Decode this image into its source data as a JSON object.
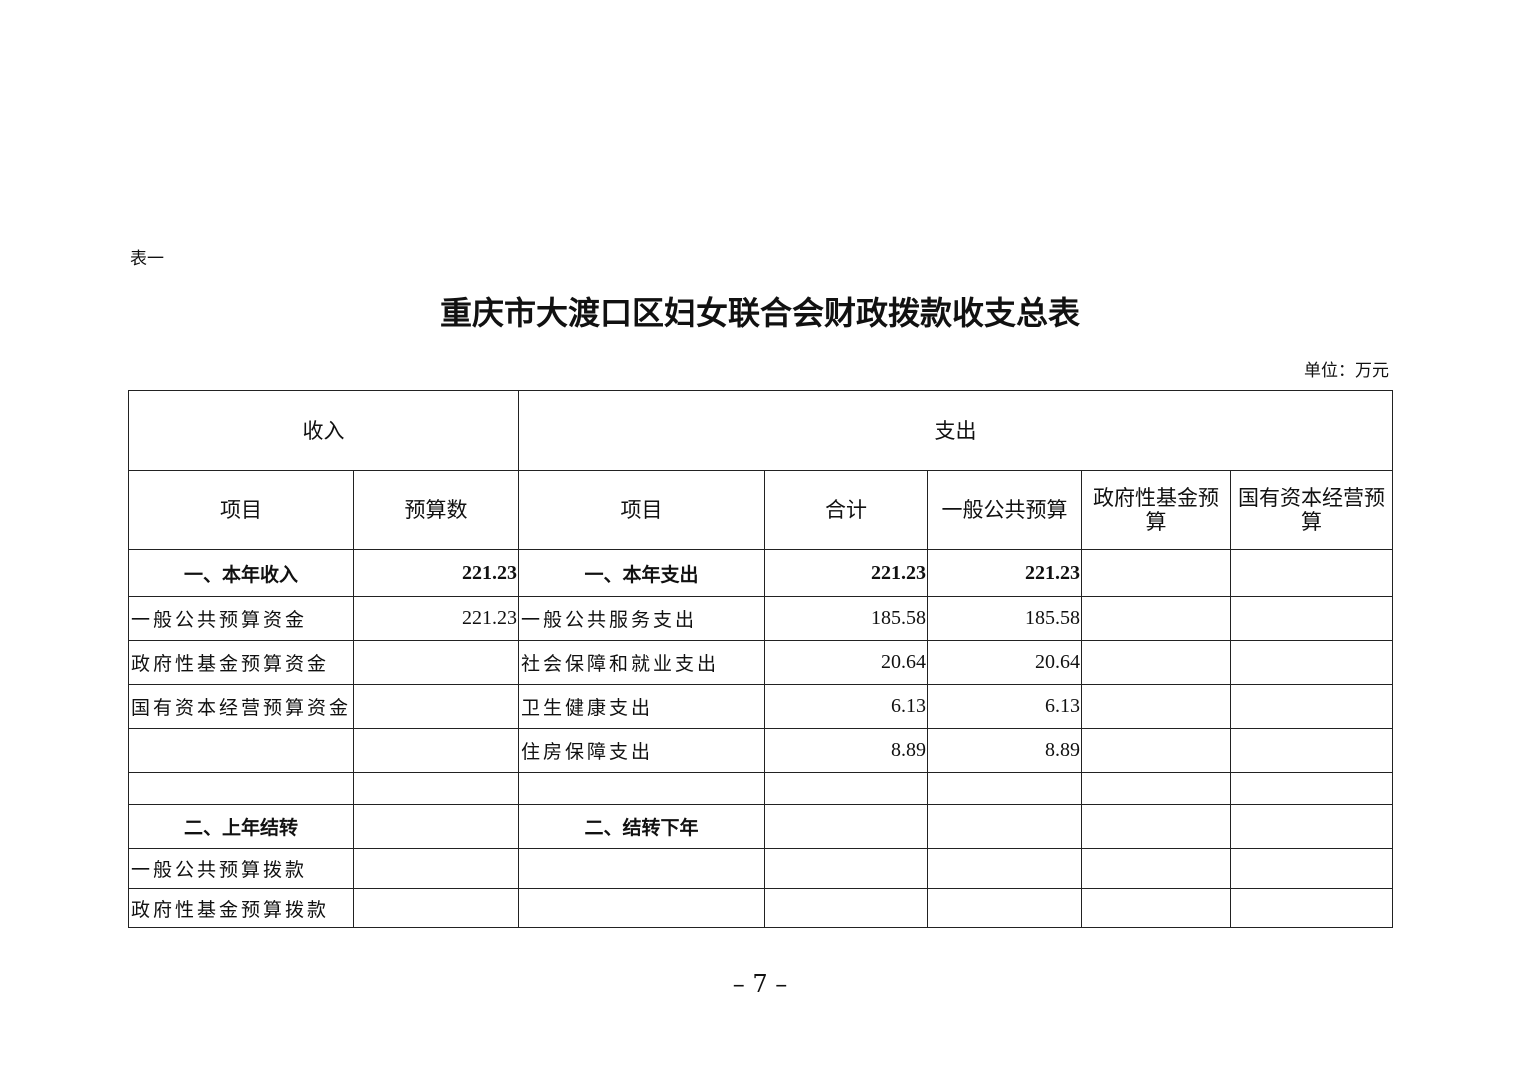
{
  "table_label": "表一",
  "title": "重庆市大渡口区妇女联合会财政拨款收支总表",
  "unit": "单位：万元",
  "header": {
    "income": "收入",
    "expense": "支出",
    "cols": [
      "项目",
      "预算数",
      "项目",
      "合计",
      "一般公共预算",
      "政府性基金预算",
      "国有资本经营预算"
    ]
  },
  "rows": [
    [
      "一、本年收入",
      "221.23",
      "一、本年支出",
      "221.23",
      "221.23",
      "",
      ""
    ],
    [
      "一般公共预算资金",
      "221.23",
      "一般公共服务支出",
      "185.58",
      "185.58",
      "",
      ""
    ],
    [
      "政府性基金预算资金",
      "",
      "社会保障和就业支出",
      "20.64",
      "20.64",
      "",
      ""
    ],
    [
      "国有资本经营预算资金",
      "",
      "卫生健康支出",
      "6.13",
      "6.13",
      "",
      ""
    ],
    [
      "",
      "",
      "住房保障支出",
      "8.89",
      "8.89",
      "",
      ""
    ],
    [
      "",
      "",
      "",
      "",
      "",
      "",
      ""
    ],
    [
      "二、上年结转",
      "",
      "二、结转下年",
      "",
      "",
      "",
      ""
    ],
    [
      "一般公共预算拨款",
      "",
      "",
      "",
      "",
      "",
      ""
    ],
    [
      "政府性基金预算拨款",
      "",
      "",
      "",
      "",
      "",
      ""
    ]
  ],
  "page_number": "– 7 –"
}
